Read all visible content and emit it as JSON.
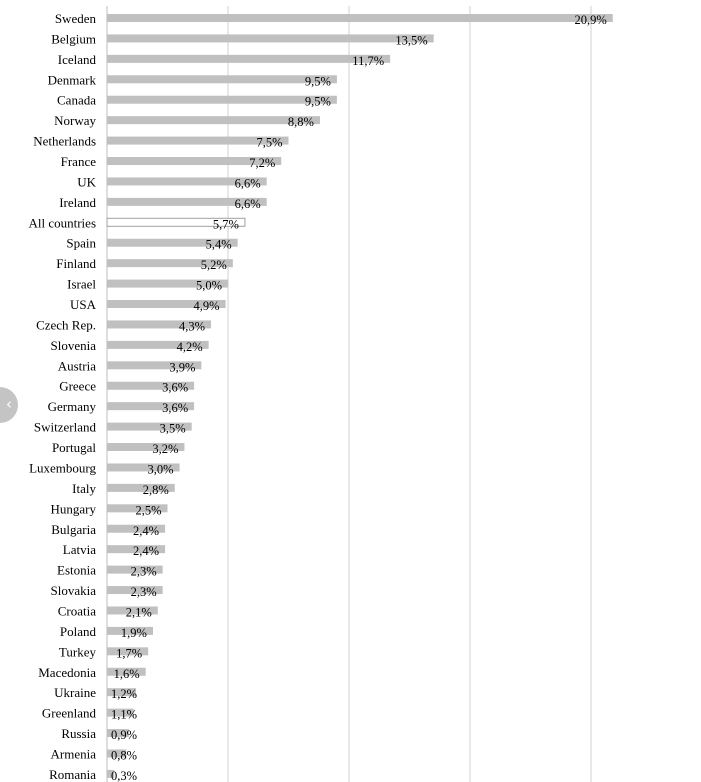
{
  "chart_data": {
    "type": "bar",
    "orientation": "horizontal",
    "title": "",
    "xlabel": "",
    "ylabel": "",
    "xlim": [
      0,
      24
    ],
    "grid": true,
    "grid_step": 5,
    "highlight_category": "All countries",
    "categories": [
      "Sweden",
      "Belgium",
      "Iceland",
      "Denmark",
      "Canada",
      "Norway",
      "Netherlands",
      "France",
      "UK",
      "Ireland",
      "All countries",
      "Spain",
      "Finland",
      "Israel",
      "USA",
      "Czech Rep.",
      "Slovenia",
      "Austria",
      "Greece",
      "Germany",
      "Switzerland",
      "Portugal",
      "Luxembourg",
      "Italy",
      "Hungary",
      "Bulgaria",
      "Latvia",
      "Estonia",
      "Slovakia",
      "Croatia",
      "Poland",
      "Turkey",
      "Macedonia",
      "Ukraine",
      "Greenland",
      "Russia",
      "Armenia",
      "Romania"
    ],
    "values": [
      20.9,
      13.5,
      11.7,
      9.5,
      9.5,
      8.8,
      7.5,
      7.2,
      6.6,
      6.6,
      5.7,
      5.4,
      5.2,
      5.0,
      4.9,
      4.3,
      4.2,
      3.9,
      3.6,
      3.6,
      3.5,
      3.2,
      3.0,
      2.8,
      2.5,
      2.4,
      2.4,
      2.3,
      2.3,
      2.1,
      1.9,
      1.7,
      1.6,
      1.2,
      1.1,
      0.9,
      0.8,
      0.3
    ],
    "labels": [
      "20,9%",
      "13,5%",
      "11,7%",
      "9,5%",
      "9,5%",
      "8,8%",
      "7,5%",
      "7,2%",
      "6,6%",
      "6,6%",
      "5,7%",
      "5,4%",
      "5,2%",
      "5,0%",
      "4,9%",
      "4,3%",
      "4,2%",
      "3,9%",
      "3,6%",
      "3,6%",
      "3,5%",
      "3,2%",
      "3,0%",
      "2,8%",
      "2,5%",
      "2,4%",
      "2,4%",
      "2,3%",
      "2,3%",
      "2,1%",
      "1,9%",
      "1,7%",
      "1,6%",
      "1,2%",
      "1,1%",
      "0,9%",
      "0,8%",
      "0,3%"
    ],
    "colors": {
      "bar": "#c0c0c0",
      "highlight_fill": "#ffffff",
      "highlight_stroke": "#a0a0a0",
      "grid": "#d0d0d0"
    }
  },
  "nav": {
    "prev_icon": "chevron-left-icon",
    "prev_glyph": "‹"
  }
}
